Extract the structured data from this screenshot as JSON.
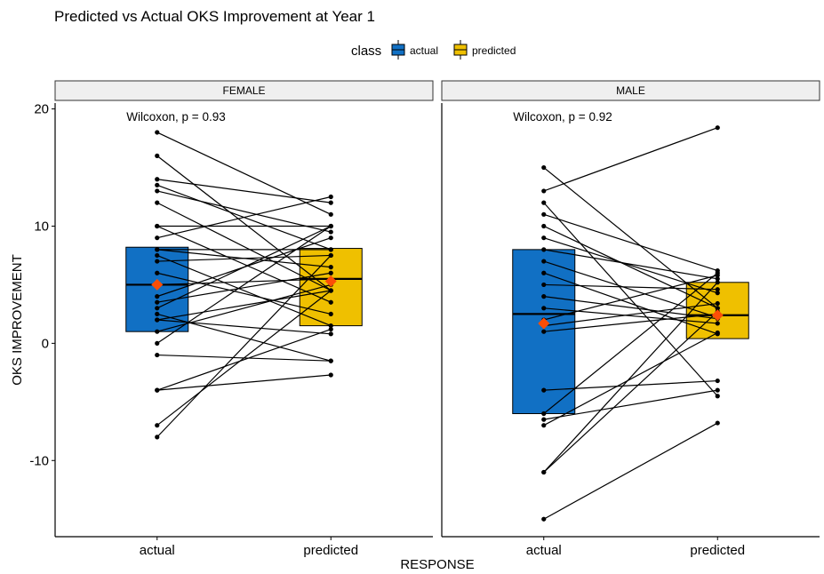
{
  "chart_data": {
    "type": "box-paired",
    "title": "Predicted vs Actual OKS Improvement at Year 1",
    "xlabel": "RESPONSE",
    "ylabel": "OKS IMPROVEMENT",
    "categories": [
      "actual",
      "predicted"
    ],
    "ylim": [
      -16.5,
      20.5
    ],
    "yticks": [
      -10,
      0,
      10,
      20
    ],
    "legend": {
      "title": "class",
      "position": "top",
      "items": [
        {
          "label": "actual",
          "color": "#1170c4"
        },
        {
          "label": "predicted",
          "color": "#efc000"
        }
      ]
    },
    "colors": {
      "actual": "#1170c4",
      "predicted": "#efc000",
      "mean_marker": "#fc4e07",
      "strip_bg": "#efefef",
      "line": "#000000"
    },
    "grid": false,
    "panels": [
      {
        "strip": "FEMALE",
        "annotation": "Wilcoxon, p = 0.93",
        "boxes": [
          {
            "class": "actual",
            "q1": 1,
            "median": 5,
            "q3": 8.2,
            "mean": 5
          },
          {
            "class": "predicted",
            "q1": 1.5,
            "median": 5.5,
            "q3": 8.1,
            "mean": 5.3
          }
        ],
        "pairs": [
          [
            18,
            11
          ],
          [
            16,
            4.5
          ],
          [
            14,
            12
          ],
          [
            13.5,
            8
          ],
          [
            13,
            9.5
          ],
          [
            12,
            4.5
          ],
          [
            10,
            3.5
          ],
          [
            10,
            10
          ],
          [
            9,
            12.5
          ],
          [
            8,
            6.5
          ],
          [
            8,
            8
          ],
          [
            7.5,
            1.5
          ],
          [
            7,
            7.5
          ],
          [
            6,
            2.5
          ],
          [
            5,
            5.5
          ],
          [
            4,
            9
          ],
          [
            3.5,
            6
          ],
          [
            3,
            10
          ],
          [
            2.5,
            -1.5
          ],
          [
            2,
            4.5
          ],
          [
            2,
            0.8
          ],
          [
            1,
            5
          ],
          [
            0,
            10
          ],
          [
            -1,
            -1.5
          ],
          [
            -4,
            1.2
          ],
          [
            -4,
            -2.7
          ],
          [
            -7,
            4.5
          ],
          [
            -8,
            7.5
          ]
        ]
      },
      {
        "strip": "MALE",
        "annotation": "Wilcoxon, p = 0.92",
        "boxes": [
          {
            "class": "actual",
            "q1": -6,
            "median": 2.5,
            "q3": 8,
            "mean": 1.7
          },
          {
            "class": "predicted",
            "q1": 0.4,
            "median": 2.4,
            "q3": 5.2,
            "mean": 2.4
          }
        ],
        "pairs": [
          [
            15,
            3
          ],
          [
            13,
            18.4
          ],
          [
            12,
            -4.5
          ],
          [
            11,
            6.2
          ],
          [
            10,
            3
          ],
          [
            9,
            4.3
          ],
          [
            8,
            5.5
          ],
          [
            7,
            2.2
          ],
          [
            6,
            0.8
          ],
          [
            5,
            4.6
          ],
          [
            4,
            2.1
          ],
          [
            3,
            1.7
          ],
          [
            2,
            5.8
          ],
          [
            1.5,
            3.4
          ],
          [
            1,
            2.5
          ],
          [
            -4,
            -3.2
          ],
          [
            -6,
            6
          ],
          [
            -6.5,
            -4
          ],
          [
            -7,
            0.9
          ],
          [
            -11,
            5.2
          ],
          [
            -11,
            2.7
          ],
          [
            -15,
            -6.8
          ]
        ]
      }
    ]
  }
}
